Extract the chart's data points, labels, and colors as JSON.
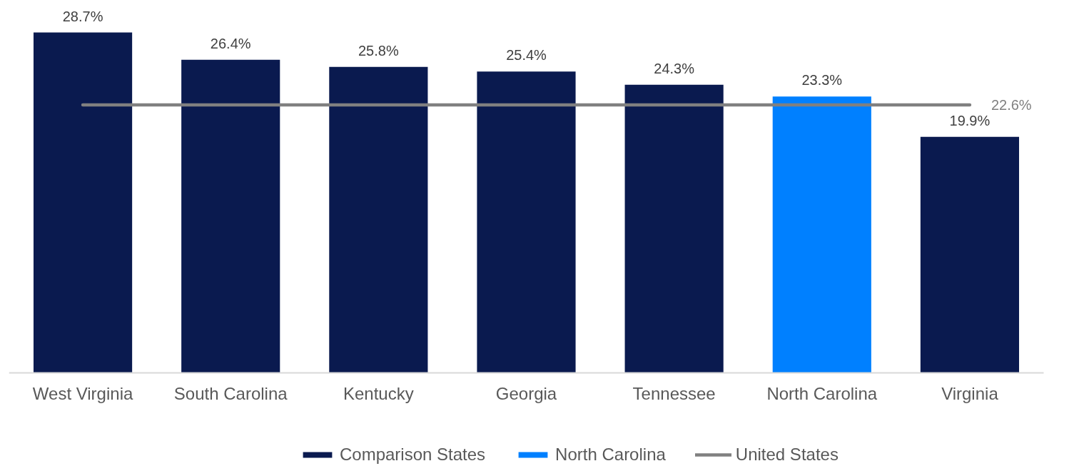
{
  "chart_data": {
    "type": "bar",
    "categories": [
      "West Virginia",
      "South Carolina",
      "Kentucky",
      "Georgia",
      "Tennessee",
      "North Carolina",
      "Virginia"
    ],
    "series": [
      {
        "name": "Comparison States",
        "color": "#0a1a4f",
        "values": [
          28.7,
          26.4,
          25.8,
          25.4,
          24.3,
          null,
          19.9
        ],
        "value_labels": [
          "28.7%",
          "26.4%",
          "25.8%",
          "25.4%",
          "24.3%",
          null,
          "19.9%"
        ]
      },
      {
        "name": "North Carolina",
        "color": "#0080ff",
        "values": [
          null,
          null,
          null,
          null,
          null,
          23.3,
          null
        ],
        "value_labels": [
          null,
          null,
          null,
          null,
          null,
          "23.3%",
          null
        ]
      },
      {
        "name": "United States",
        "type": "line",
        "color": "#808080",
        "values": [
          22.6,
          22.6,
          22.6,
          22.6,
          22.6,
          22.6,
          22.6
        ],
        "value_labels": [
          null,
          null,
          null,
          null,
          null,
          null,
          "22.6%"
        ]
      }
    ],
    "tick_labels": "x",
    "legend": "bottom"
  }
}
